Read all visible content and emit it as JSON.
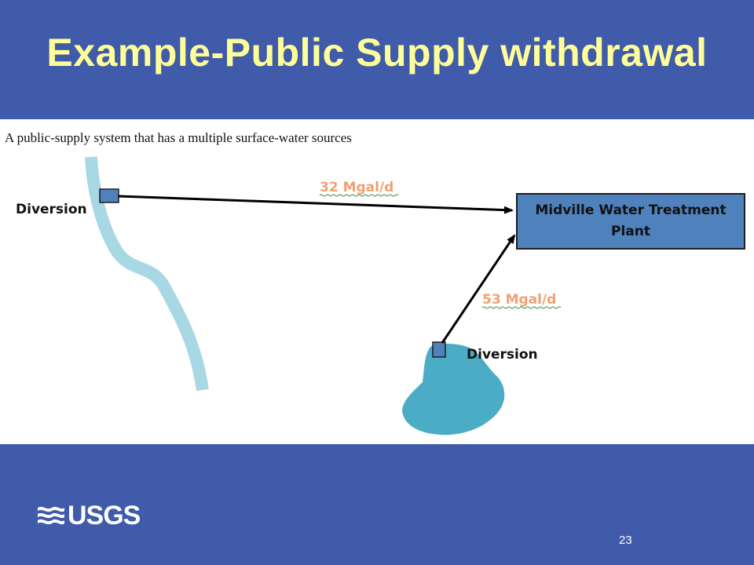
{
  "slide": {
    "title": "Example-Public Supply withdrawal",
    "page_number": "23"
  },
  "diagram": {
    "caption": "A public-supply system that has a multiple surface-water sources",
    "river_diversion_label": "Diversion",
    "lake_diversion_label": "Diversion",
    "river_flow_label": "32 Mgal/d",
    "lake_flow_label": "53 Mgal/d",
    "plant_label": "Midville Water Treatment Plant"
  },
  "footer": {
    "logo_text": "USGS"
  },
  "colors": {
    "background": "#3f5ba9",
    "title": "#ffff99",
    "river": "#a8d8e4",
    "lake": "#4bacc6",
    "box": "#4f81bd",
    "flow_label": "#f0a070"
  }
}
